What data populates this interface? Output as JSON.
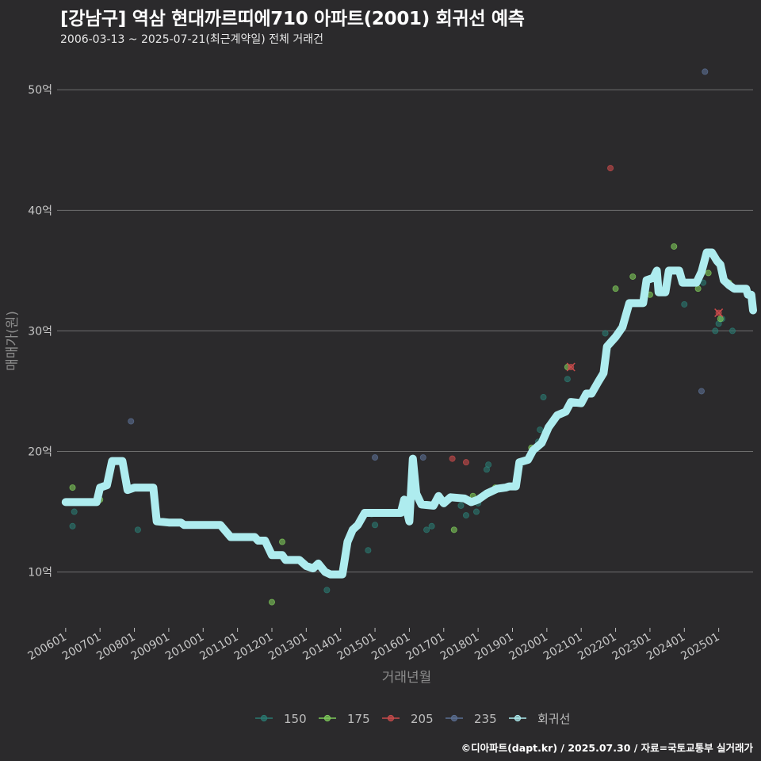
{
  "header": {
    "title": "[강남구] 역삼 현대까르띠에710 아파트(2001) 회귀선 예측",
    "subtitle": "2006-03-13 ~ 2025-07-21(최근계약일) 전체 거래건"
  },
  "caption": "©디아파트(dapt.kr) / 2025.07.30 / 자료=국토교통부 실거래가",
  "colors": {
    "background": "#2b2a2c",
    "grid": "#6e6e6e",
    "s150": "#2a7a72",
    "s175": "#7ecb5a",
    "s205": "#c94b4b",
    "s235": "#5b6f93",
    "regression": "#aeecef"
  },
  "chart_data": {
    "type": "scatter",
    "title": "[강남구] 역삼 현대까르띠에710 아파트(2001) 회귀선 예측",
    "xlabel": "거래년월",
    "ylabel": "매매가(원)",
    "xlim": [
      2005.75,
      2026.0
    ],
    "ylim": [
      5.5,
      53.5
    ],
    "y_ticks": [
      10,
      20,
      30,
      40,
      50
    ],
    "y_tick_labels": [
      "10억",
      "20억",
      "30억",
      "40억",
      "50억"
    ],
    "x_ticks": [
      2006,
      2007,
      2008,
      2009,
      2010,
      2011,
      2012,
      2013,
      2014,
      2015,
      2016,
      2017,
      2018,
      2019,
      2020,
      2021,
      2022,
      2023,
      2024,
      2025
    ],
    "x_tick_labels": [
      "200601",
      "200701",
      "200801",
      "200901",
      "201001",
      "201101",
      "201201",
      "201301",
      "201401",
      "201501",
      "201601",
      "201701",
      "201801",
      "201901",
      "202001",
      "202101",
      "202201",
      "202301",
      "202401",
      "202501"
    ],
    "legend": {
      "position": "bottom",
      "items": [
        {
          "key": "s150",
          "label": "150"
        },
        {
          "key": "s175",
          "label": "175"
        },
        {
          "key": "s205",
          "label": "205"
        },
        {
          "key": "s235",
          "label": "235"
        },
        {
          "key": "regression",
          "label": "회귀선"
        }
      ]
    },
    "series": [
      {
        "name": "150",
        "key": "s150",
        "points": [
          [
            2006.2,
            13.8
          ],
          [
            2006.25,
            15.0
          ],
          [
            2008.1,
            13.5
          ],
          [
            2012.0,
            11.5
          ],
          [
            2013.6,
            8.5
          ],
          [
            2014.8,
            11.8
          ],
          [
            2014.9,
            14.8
          ],
          [
            2015.0,
            13.9
          ],
          [
            2016.5,
            13.5
          ],
          [
            2016.65,
            13.8
          ],
          [
            2017.5,
            15.5
          ],
          [
            2017.65,
            14.7
          ],
          [
            2017.95,
            15.0
          ],
          [
            2018.0,
            15.7
          ],
          [
            2018.25,
            18.5
          ],
          [
            2018.3,
            18.9
          ],
          [
            2019.75,
            20.8
          ],
          [
            2019.8,
            21.8
          ],
          [
            2019.9,
            24.5
          ],
          [
            2020.6,
            26.0
          ],
          [
            2021.1,
            24.5
          ],
          [
            2021.7,
            29.8
          ],
          [
            2024.0,
            32.2
          ],
          [
            2024.55,
            34.0
          ],
          [
            2024.9,
            30.0
          ],
          [
            2025.0,
            30.6
          ],
          [
            2025.1,
            31.0
          ],
          [
            2025.4,
            30.0
          ]
        ]
      },
      {
        "name": "175",
        "key": "s175",
        "points": [
          [
            2006.2,
            17.0
          ],
          [
            2007.0,
            16.0
          ],
          [
            2012.0,
            7.5
          ],
          [
            2012.3,
            12.5
          ],
          [
            2016.3,
            15.8
          ],
          [
            2017.3,
            13.5
          ],
          [
            2017.85,
            16.3
          ],
          [
            2018.5,
            17.0
          ],
          [
            2019.55,
            20.3
          ],
          [
            2020.6,
            27.0
          ],
          [
            2022.0,
            33.5
          ],
          [
            2022.5,
            34.5
          ],
          [
            2023.0,
            33.0
          ],
          [
            2023.7,
            37.0
          ],
          [
            2024.4,
            33.5
          ],
          [
            2024.7,
            34.8
          ],
          [
            2025.05,
            31.0
          ],
          [
            2025.3,
            34.0
          ]
        ]
      },
      {
        "name": "205",
        "key": "s205",
        "points": [
          [
            2017.25,
            19.4
          ],
          [
            2017.65,
            19.1
          ],
          [
            2020.7,
            27.0
          ],
          [
            2021.85,
            43.5
          ],
          [
            2025.0,
            31.5
          ]
        ]
      },
      {
        "name": "235",
        "key": "s235",
        "points": [
          [
            2007.9,
            22.5
          ],
          [
            2015.0,
            19.5
          ],
          [
            2016.4,
            19.5
          ],
          [
            2024.5,
            25.0
          ],
          [
            2024.6,
            51.5
          ]
        ]
      }
    ],
    "regression": {
      "name": "회귀선",
      "key": "regression",
      "points": [
        [
          2006.0,
          15.8
        ],
        [
          2006.3,
          15.8
        ],
        [
          2006.9,
          15.8
        ],
        [
          2007.0,
          17.0
        ],
        [
          2007.2,
          17.2
        ],
        [
          2007.35,
          19.2
        ],
        [
          2007.65,
          19.2
        ],
        [
          2007.8,
          16.8
        ],
        [
          2008.0,
          17.0
        ],
        [
          2008.55,
          17.0
        ],
        [
          2008.65,
          14.2
        ],
        [
          2009.0,
          14.1
        ],
        [
          2009.35,
          14.1
        ],
        [
          2009.45,
          13.9
        ],
        [
          2010.15,
          13.9
        ],
        [
          2010.5,
          13.9
        ],
        [
          2010.8,
          12.9
        ],
        [
          2011.5,
          12.9
        ],
        [
          2011.6,
          12.6
        ],
        [
          2011.8,
          12.6
        ],
        [
          2012.0,
          11.4
        ],
        [
          2012.3,
          11.4
        ],
        [
          2012.4,
          11.0
        ],
        [
          2012.8,
          11.0
        ],
        [
          2013.0,
          10.5
        ],
        [
          2013.2,
          10.3
        ],
        [
          2013.35,
          10.7
        ],
        [
          2013.55,
          10.0
        ],
        [
          2013.7,
          9.8
        ],
        [
          2014.05,
          9.8
        ],
        [
          2014.2,
          12.5
        ],
        [
          2014.35,
          13.5
        ],
        [
          2014.5,
          13.9
        ],
        [
          2014.7,
          14.9
        ],
        [
          2015.35,
          14.9
        ],
        [
          2015.75,
          14.9
        ],
        [
          2015.85,
          16.0
        ],
        [
          2016.0,
          14.2
        ],
        [
          2016.1,
          19.4
        ],
        [
          2016.2,
          16.5
        ],
        [
          2016.35,
          15.6
        ],
        [
          2016.7,
          15.5
        ],
        [
          2016.85,
          16.3
        ],
        [
          2017.0,
          15.7
        ],
        [
          2017.2,
          16.2
        ],
        [
          2017.6,
          16.1
        ],
        [
          2017.8,
          15.8
        ],
        [
          2018.0,
          16.0
        ],
        [
          2018.25,
          16.5
        ],
        [
          2018.55,
          16.9
        ],
        [
          2018.8,
          17.0
        ],
        [
          2018.9,
          17.1
        ],
        [
          2019.1,
          17.1
        ],
        [
          2019.2,
          19.1
        ],
        [
          2019.45,
          19.3
        ],
        [
          2019.6,
          20.1
        ],
        [
          2019.85,
          20.7
        ],
        [
          2020.05,
          22.0
        ],
        [
          2020.3,
          23.0
        ],
        [
          2020.55,
          23.3
        ],
        [
          2020.7,
          24.1
        ],
        [
          2021.0,
          24.0
        ],
        [
          2021.15,
          24.8
        ],
        [
          2021.3,
          24.8
        ],
        [
          2021.5,
          25.8
        ],
        [
          2021.65,
          26.5
        ],
        [
          2021.75,
          28.7
        ],
        [
          2022.0,
          29.5
        ],
        [
          2022.2,
          30.3
        ],
        [
          2022.4,
          32.3
        ],
        [
          2022.8,
          32.3
        ],
        [
          2022.9,
          34.2
        ],
        [
          2023.1,
          34.4
        ],
        [
          2023.2,
          35.0
        ],
        [
          2023.25,
          33.2
        ],
        [
          2023.45,
          33.2
        ],
        [
          2023.55,
          35.0
        ],
        [
          2023.85,
          35.0
        ],
        [
          2023.95,
          34.0
        ],
        [
          2024.35,
          34.0
        ],
        [
          2024.5,
          34.9
        ],
        [
          2024.65,
          36.5
        ],
        [
          2024.8,
          36.5
        ],
        [
          2024.95,
          35.8
        ],
        [
          2025.05,
          35.5
        ],
        [
          2025.15,
          34.2
        ],
        [
          2025.3,
          33.8
        ],
        [
          2025.45,
          33.5
        ],
        [
          2025.8,
          33.5
        ],
        [
          2025.85,
          33.0
        ],
        [
          2025.95,
          33.0
        ],
        [
          2026.0,
          31.7
        ]
      ]
    }
  }
}
